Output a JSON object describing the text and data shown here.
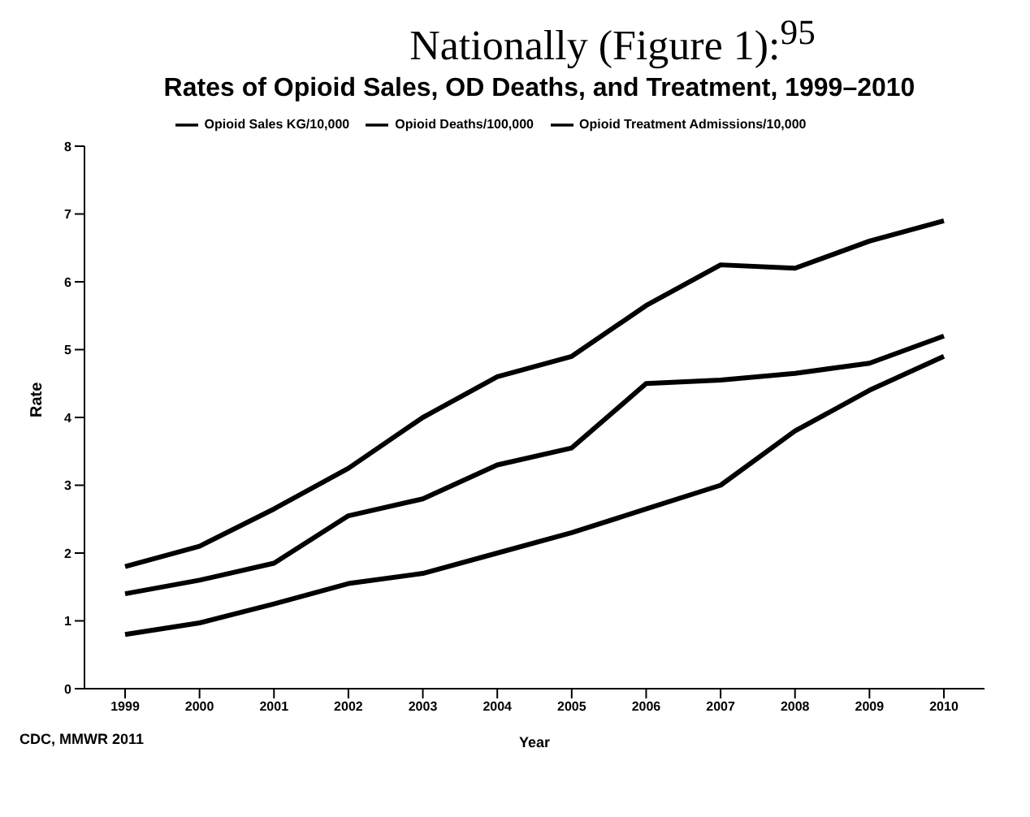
{
  "chart_data": {
    "type": "line",
    "subtitle": "Nationally (Figure 1):$^{95}$",
    "title": "Rates of Opioid Sales, OD Deaths, and Treatment, 1999–2010",
    "xlabel": "Year",
    "ylabel": "Rate",
    "annotations": [
      "CDC, MMWR 2011"
    ],
    "categories": [
      "1999",
      "2000",
      "2001",
      "2002",
      "2003",
      "2004",
      "2005",
      "2006",
      "2007",
      "2008",
      "2009",
      "2010"
    ],
    "series": [
      {
        "name": "Opioid Sales KG/10,000",
        "color": "#000000",
        "values": [
          1.8,
          2.1,
          2.65,
          3.25,
          4.0,
          4.6,
          4.9,
          5.65,
          6.25,
          6.2,
          6.6,
          6.9
        ]
      },
      {
        "name": "Opioid Deaths/100,000",
        "color": "#000000",
        "values": [
          1.4,
          1.6,
          1.85,
          2.55,
          2.8,
          3.3,
          3.55,
          4.5,
          4.55,
          4.65,
          4.8,
          5.2
        ]
      },
      {
        "name": "Opioid Treatment Admissions/10,000",
        "color": "#000000",
        "values": [
          0.8,
          0.97,
          1.25,
          1.55,
          1.7,
          2.0,
          2.3,
          2.65,
          3.0,
          3.8,
          4.4,
          4.9
        ]
      }
    ],
    "ylim": [
      0,
      8
    ],
    "yticks": [
      0,
      1,
      2,
      3,
      4,
      5,
      6,
      7,
      8
    ],
    "grid": false,
    "legend": "top",
    "marker": "none",
    "line_style": "solid"
  }
}
